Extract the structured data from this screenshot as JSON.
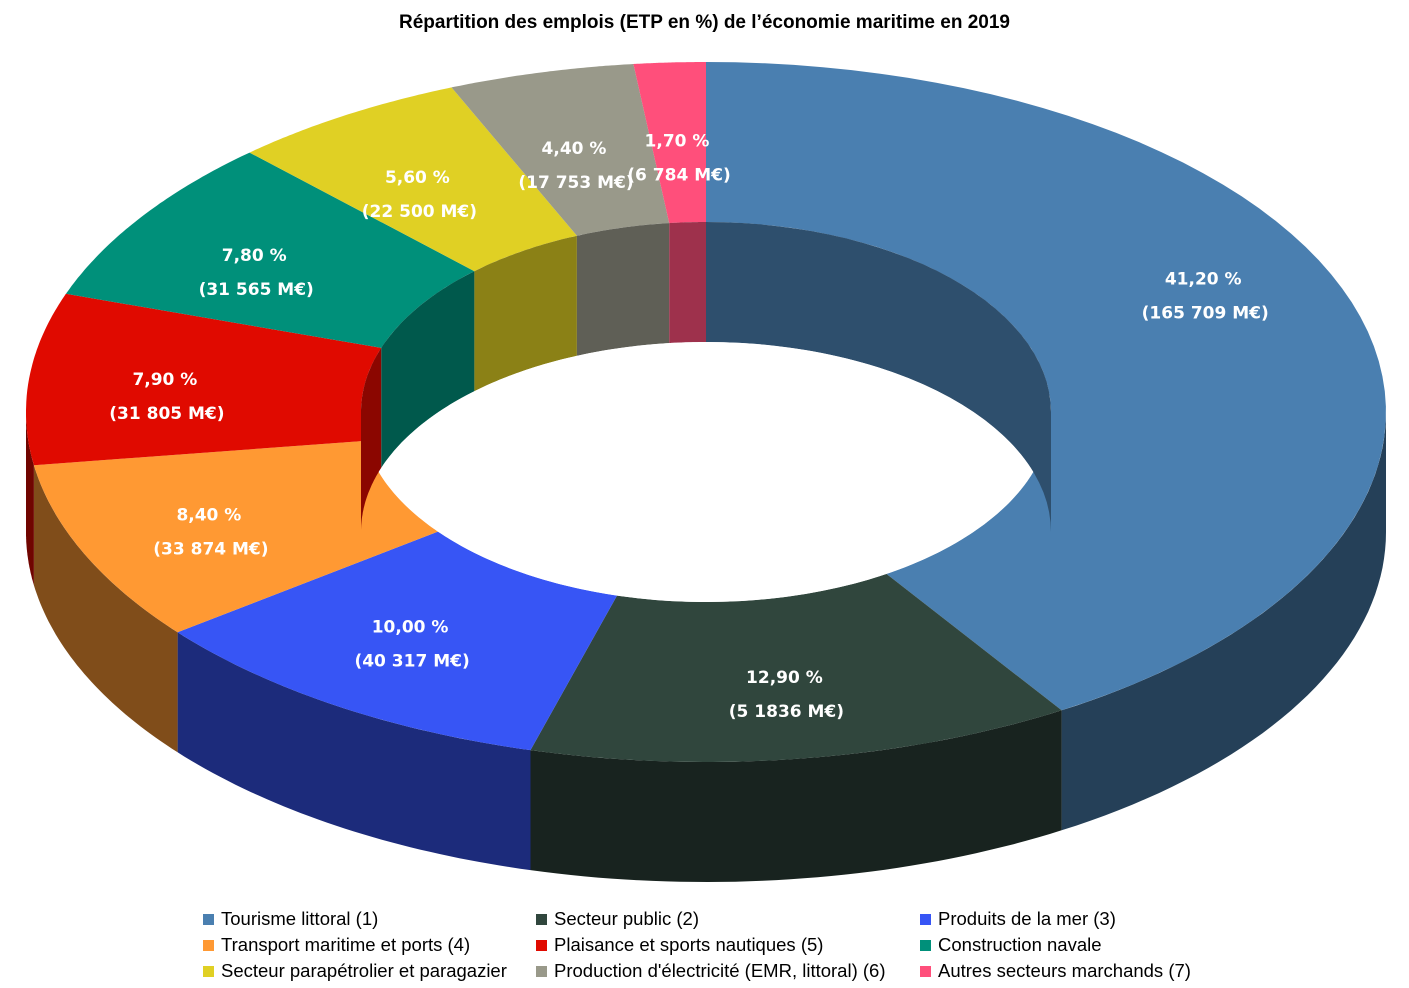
{
  "chart_data": {
    "type": "pie",
    "variant": "3d-donut",
    "title": "Répartition des emplois (ETP en %) de l’économie maritime en 2019",
    "legend_position": "bottom",
    "slices": [
      {
        "name": "Tourisme littoral (1)",
        "value": 41.2,
        "label": "41,20 %",
        "sublabel": "(165 709 M€)",
        "color": "#4a7fb0"
      },
      {
        "name": "Secteur public (2)",
        "value": 12.9,
        "label": "12,90 %",
        "sublabel": "(5 1836 M€)",
        "color": "#30463d"
      },
      {
        "name": "Produits de la mer (3)",
        "value": 10.0,
        "label": "10,00 %",
        "sublabel": "(40 317 M€)",
        "color": "#3755f5"
      },
      {
        "name": "Transport maritime et ports (4)",
        "value": 8.4,
        "label": "8,40 %",
        "sublabel": "(33 874 M€)",
        "color": "#ff9933"
      },
      {
        "name": "Plaisance et sports nautiques (5)",
        "value": 7.9,
        "label": "7,90 %",
        "sublabel": "(31 805 M€)",
        "color": "#e00a00"
      },
      {
        "name": "Construction navale",
        "value": 7.8,
        "label": "7,80 %",
        "sublabel": "(31 565 M€)",
        "color": "#00907a"
      },
      {
        "name": "Secteur parapétrolier et paragazier",
        "value": 5.6,
        "label": "5,60 %",
        "sublabel": "(22 500 M€)",
        "color": "#e0d024"
      },
      {
        "name": "Production d'électricité (EMR, littoral) (6)",
        "value": 4.4,
        "label": "4,40 %",
        "sublabel": "(17 753 M€)",
        "color": "#99998a"
      },
      {
        "name": "Autres secteurs marchands (7)",
        "value": 1.7,
        "label": "1,70 %",
        "sublabel": "(6 784 M€)",
        "color": "#ff4f7b"
      }
    ]
  }
}
